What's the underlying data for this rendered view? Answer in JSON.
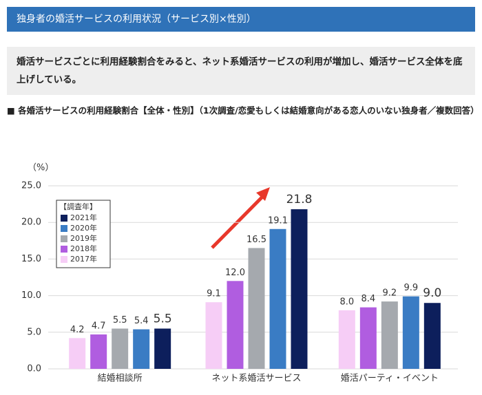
{
  "header": {
    "title": "独身者の婚活サービスの利用状況（サービス別×性別）"
  },
  "summary": "婚活サービスごとに利用経験割合をみると、ネット系婚活サービスの利用が増加し、婚活サービス全体を底上げしている。",
  "chart_data": {
    "type": "bar",
    "title": "■ 各婚活サービスの利用経験割合【全体・性別】（1次調査/恋愛もしくは結婚意向がある恋人のいない独身者／複数回答）",
    "y_label": "（%）",
    "legend_title": "【調査年】",
    "categories": [
      "結婚相談所",
      "ネット系婚活サービス",
      "婚活パーティ・イベント"
    ],
    "series": [
      {
        "name": "2017年",
        "color": "#f6cdf6",
        "values": [
          4.2,
          9.1,
          8.0
        ],
        "value_labels": [
          "4.2",
          "9.1",
          "8.0"
        ]
      },
      {
        "name": "2018年",
        "color": "#b05de0",
        "values": [
          4.7,
          12.0,
          8.4
        ],
        "value_labels": [
          "4.7",
          "12.0",
          "8.4"
        ]
      },
      {
        "name": "2019年",
        "color": "#a5a9ae",
        "values": [
          5.5,
          16.5,
          9.2
        ],
        "value_labels": [
          "5.5",
          "16.5",
          "9.2"
        ]
      },
      {
        "name": "2020年",
        "color": "#3a7cc4",
        "values": [
          5.4,
          19.1,
          9.9
        ],
        "value_labels": [
          "5.4",
          "19.1",
          "9.9"
        ]
      },
      {
        "name": "2021年",
        "color": "#0d1f5c",
        "values": [
          5.5,
          21.8,
          9.0
        ],
        "value_labels": [
          "5.5",
          "21.8",
          "9.0"
        ]
      }
    ],
    "ylim": [
      0,
      25
    ],
    "yticks": [
      {
        "value": 0,
        "label": "0.0"
      },
      {
        "value": 5,
        "label": "5.0"
      },
      {
        "value": 10,
        "label": "10.0"
      },
      {
        "value": 15,
        "label": "15.0"
      },
      {
        "value": 20,
        "label": "20.0"
      },
      {
        "value": 25,
        "label": "25.0"
      }
    ],
    "grid": true
  }
}
